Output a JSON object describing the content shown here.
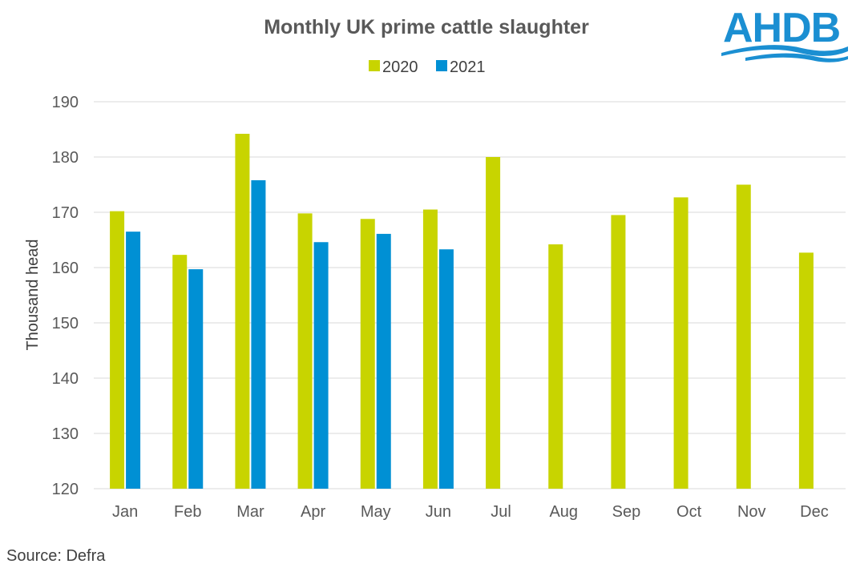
{
  "colors": {
    "s2020": "#c8d400",
    "s2021": "#0090d4",
    "grid": "#d9d9d9",
    "logo": "#1b8fd2"
  },
  "logo": {
    "text": "AHDB"
  },
  "source": "Source: Defra",
  "chart_data": {
    "type": "bar",
    "title": "Monthly UK prime cattle slaughter",
    "xlabel": "",
    "ylabel": "Thousand head",
    "ylim": [
      120,
      190
    ],
    "yticks": [
      120,
      130,
      140,
      150,
      160,
      170,
      180,
      190
    ],
    "legend_position": "top-center",
    "grid": true,
    "categories": [
      "Jan",
      "Feb",
      "Mar",
      "Apr",
      "May",
      "Jun",
      "Jul",
      "Aug",
      "Sep",
      "Oct",
      "Nov",
      "Dec"
    ],
    "series": [
      {
        "name": "2020",
        "color": "#c8d400",
        "values": [
          170.2,
          162.3,
          184.2,
          169.8,
          168.8,
          170.5,
          180.0,
          164.2,
          169.5,
          172.7,
          175.0,
          162.7
        ]
      },
      {
        "name": "2021",
        "color": "#0090d4",
        "values": [
          166.5,
          159.7,
          175.8,
          164.6,
          166.1,
          163.3,
          null,
          null,
          null,
          null,
          null,
          null
        ]
      }
    ]
  }
}
